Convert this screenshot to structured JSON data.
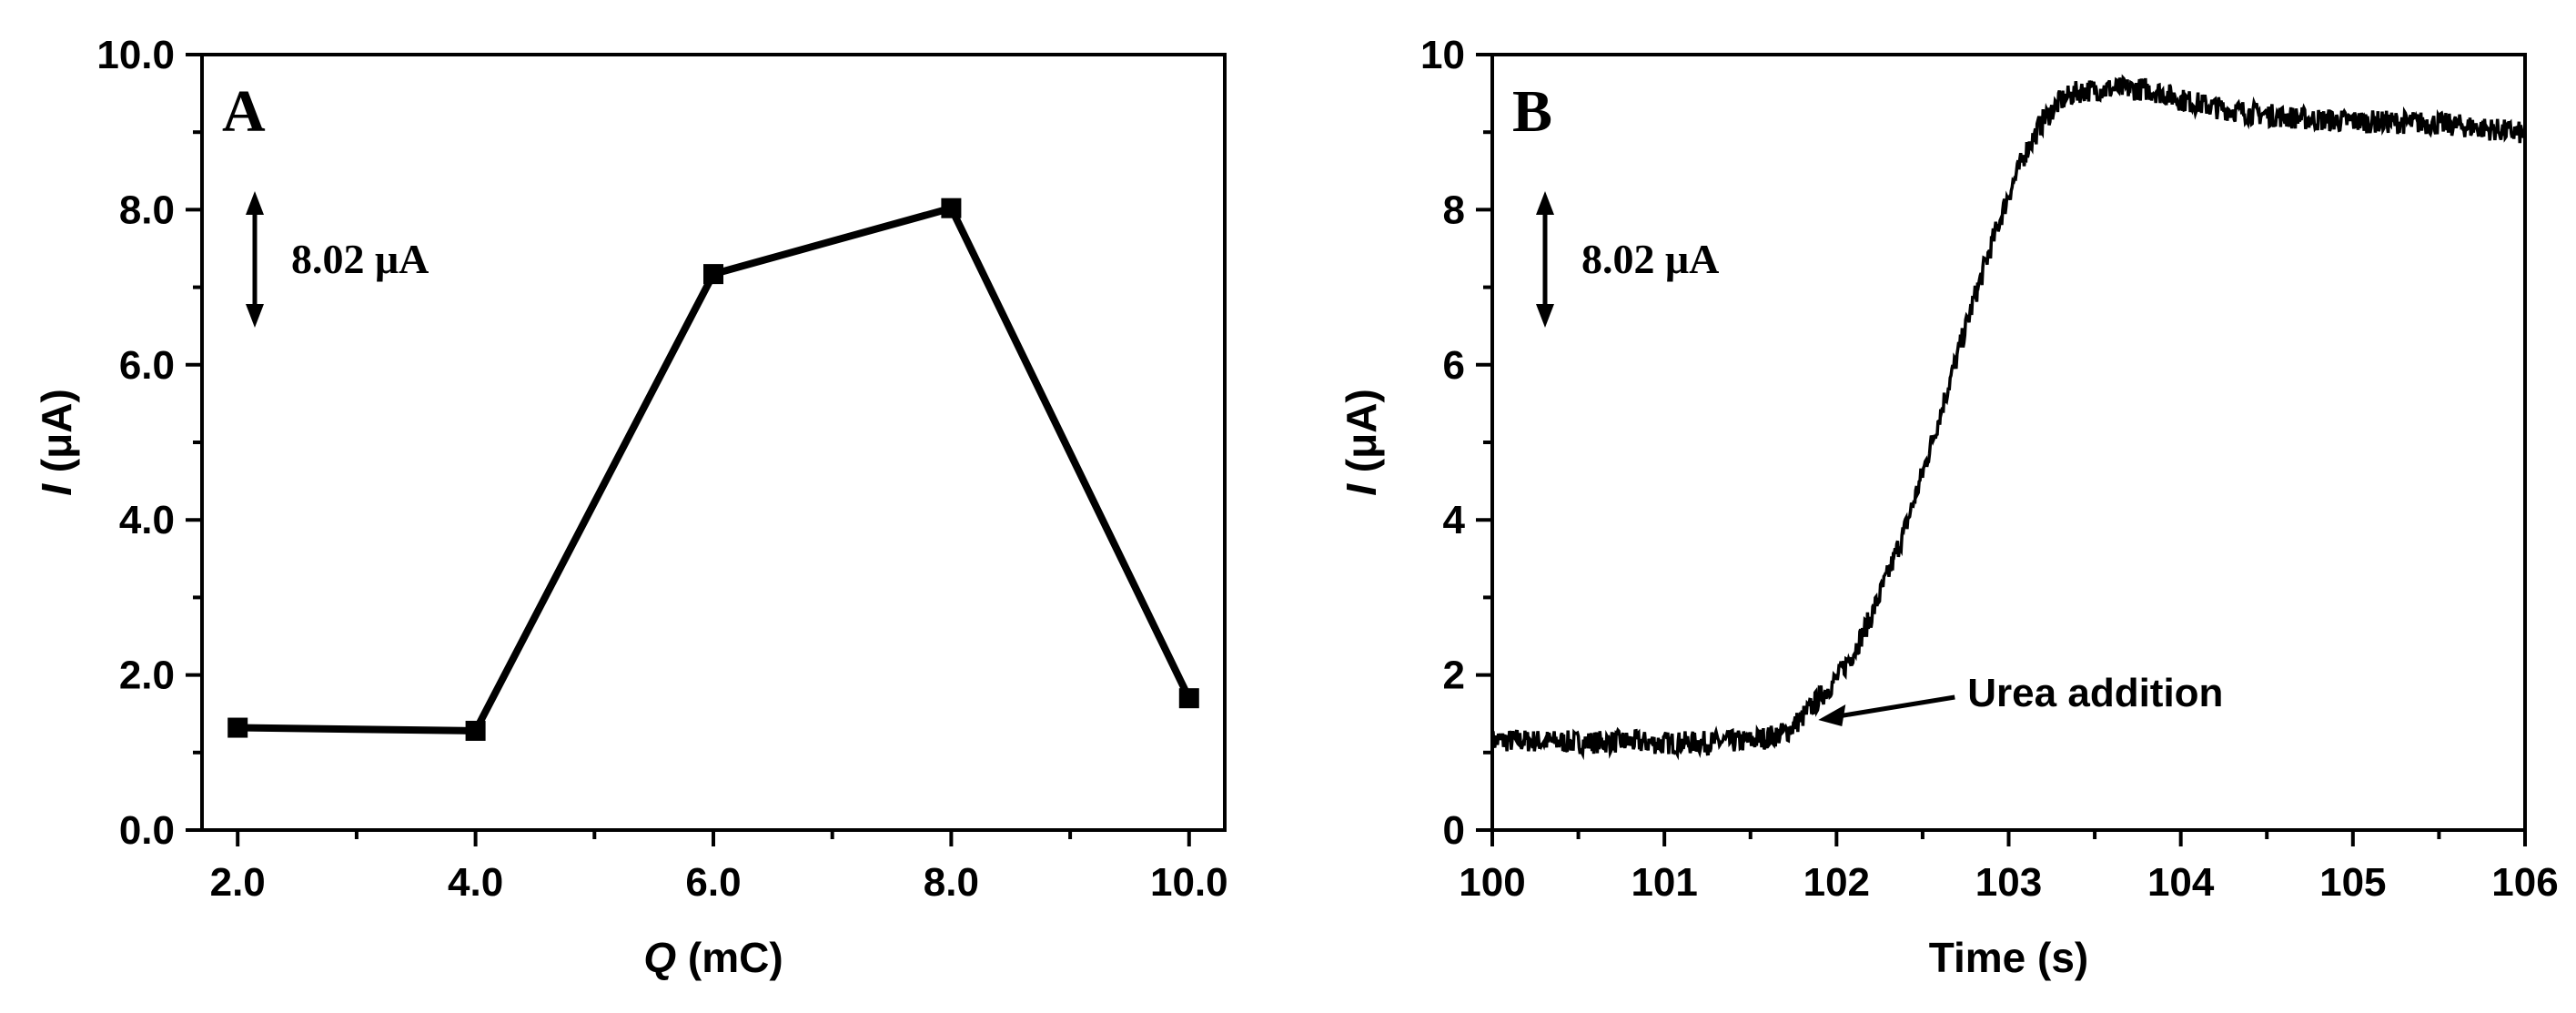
{
  "chart_data": [
    {
      "type": "line",
      "panel_label": "A",
      "xlabel": {
        "var": "Q",
        "unit": " (mC)"
      },
      "ylabel": {
        "var": "I",
        "unit": " (μA)"
      },
      "xlim": [
        1.7,
        10.3
      ],
      "ylim": [
        0,
        10
      ],
      "xticks": [
        2,
        4,
        6,
        8,
        10
      ],
      "xtick_labels": [
        "2.0",
        "4.0",
        "6.0",
        "8.0",
        "10.0"
      ],
      "yticks": [
        0,
        2,
        4,
        6,
        8,
        10
      ],
      "ytick_labels": [
        "0.0",
        "2.0",
        "4.0",
        "6.0",
        "8.0",
        "10.0"
      ],
      "scale_bar": {
        "label": "8.02 μA"
      },
      "grid": false,
      "legend": "none",
      "marker": "square",
      "color": "#000000",
      "series": [
        {
          "x": [
            2,
            4,
            6,
            8,
            10
          ],
          "values": [
            1.32,
            1.28,
            7.17,
            8.02,
            1.7
          ]
        }
      ]
    },
    {
      "type": "line",
      "panel_label": "B",
      "xlabel": "Time (s)",
      "ylabel": {
        "var": "I",
        "unit": " (μA)"
      },
      "xlim": [
        100,
        106
      ],
      "ylim": [
        0,
        10
      ],
      "xticks": [
        100,
        101,
        102,
        103,
        104,
        105,
        106
      ],
      "xtick_labels": [
        "100",
        "101",
        "102",
        "103",
        "104",
        "105",
        "106"
      ],
      "yticks": [
        0,
        2,
        4,
        6,
        8,
        10
      ],
      "ytick_labels": [
        "0",
        "2",
        "4",
        "6",
        "8",
        "10"
      ],
      "scale_bar": {
        "label": "8.02 μA"
      },
      "annotation": {
        "text": "Urea addition",
        "x": 101.82,
        "y": 1.35
      },
      "grid": false,
      "legend": "none",
      "color": "#000000",
      "series": [
        {
          "x": [
            100,
            100.25,
            100.5,
            100.75,
            101,
            101.25,
            101.5,
            101.7,
            101.8,
            101.9,
            102.0,
            102.1,
            102.2,
            102.3,
            102.4,
            102.5,
            102.6,
            102.7,
            102.8,
            102.9,
            103.0,
            103.1,
            103.2,
            103.3,
            103.4,
            103.5,
            103.6,
            103.7,
            103.8,
            103.9,
            104.0,
            104.2,
            104.4,
            104.6,
            104.8,
            105.0,
            105.2,
            105.4,
            105.6,
            105.8,
            106.0
          ],
          "values": [
            1.15,
            1.15,
            1.13,
            1.14,
            1.12,
            1.13,
            1.15,
            1.25,
            1.45,
            1.7,
            1.95,
            2.3,
            2.75,
            3.3,
            3.9,
            4.6,
            5.35,
            6.1,
            6.85,
            7.55,
            8.2,
            8.75,
            9.15,
            9.4,
            9.52,
            9.55,
            9.56,
            9.56,
            9.55,
            9.5,
            9.42,
            9.32,
            9.25,
            9.2,
            9.16,
            9.14,
            9.13,
            9.12,
            9.09,
            9.04,
            8.98
          ]
        }
      ]
    }
  ]
}
